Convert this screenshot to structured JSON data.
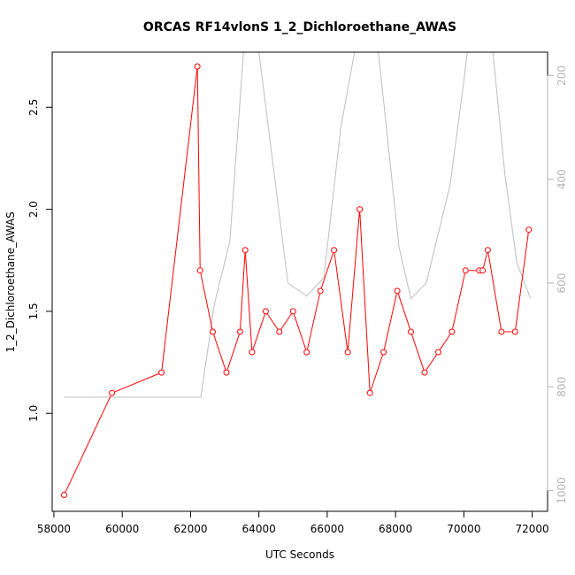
{
  "chart_data": {
    "type": "line",
    "title": "ORCAS RF14vlonS 1_2_Dichloroethane_AWAS",
    "xlabel": "UTC Seconds",
    "ylabel": "1_2_Dichloroethane_AWAS",
    "xlim": [
      57950,
      72450
    ],
    "ylim": [
      0.52,
      2.77
    ],
    "xticks": [
      58000,
      60000,
      62000,
      64000,
      66000,
      68000,
      70000,
      72000
    ],
    "yticks": [
      1.0,
      1.5,
      2.0,
      2.5
    ],
    "y2lim": [
      1040,
      155
    ],
    "y2ticks": [
      200,
      400,
      600,
      800,
      1000
    ],
    "colors": {
      "series": "#ff0000",
      "secondary": "#bebebe",
      "axis": "#000000",
      "right_axis": "#b3b3b3"
    },
    "series": [
      {
        "values": [
          [
            58300,
            0.6
          ],
          [
            59700,
            1.1
          ],
          [
            61150,
            1.2
          ],
          [
            62200,
            2.7
          ],
          [
            62280,
            1.7
          ],
          [
            62650,
            1.4
          ],
          [
            63050,
            1.2
          ],
          [
            63450,
            1.4
          ],
          [
            63600,
            1.8
          ],
          [
            63800,
            1.3
          ],
          [
            64200,
            1.5
          ],
          [
            64600,
            1.4
          ],
          [
            65000,
            1.5
          ],
          [
            65400,
            1.3
          ],
          [
            65800,
            1.6
          ],
          [
            66200,
            1.8
          ],
          [
            66600,
            1.3
          ],
          [
            66950,
            2.0
          ],
          [
            67250,
            1.1
          ],
          [
            67650,
            1.3
          ],
          [
            68050,
            1.6
          ],
          [
            68450,
            1.4
          ],
          [
            68850,
            1.2
          ],
          [
            69250,
            1.3
          ],
          [
            69650,
            1.4
          ],
          [
            70050,
            1.7
          ],
          [
            70450,
            1.7
          ],
          [
            70550,
            1.7
          ],
          [
            70700,
            1.8
          ],
          [
            71100,
            1.4
          ],
          [
            71500,
            1.4
          ],
          [
            71900,
            1.9
          ]
        ]
      },
      {
        "axis": "right",
        "values": [
          [
            58300,
            820
          ],
          [
            62300,
            820
          ],
          [
            62700,
            640
          ],
          [
            63150,
            520
          ],
          [
            63550,
            155
          ],
          [
            64000,
            155
          ],
          [
            64450,
            390
          ],
          [
            64850,
            600
          ],
          [
            65400,
            625
          ],
          [
            65900,
            590
          ],
          [
            66400,
            300
          ],
          [
            66800,
            155
          ],
          [
            67500,
            155
          ],
          [
            68100,
            530
          ],
          [
            68450,
            630
          ],
          [
            68900,
            600
          ],
          [
            69600,
            410
          ],
          [
            70000,
            210
          ],
          [
            70100,
            155
          ],
          [
            70850,
            155
          ],
          [
            71200,
            390
          ],
          [
            71550,
            560
          ],
          [
            71950,
            630
          ]
        ]
      }
    ]
  }
}
